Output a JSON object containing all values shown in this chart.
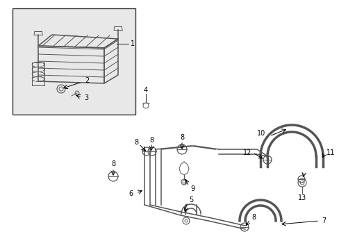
{
  "bg_color": "#ffffff",
  "line_color": "#555555",
  "box_bg": "#e8e8e8",
  "lw_thin": 0.7,
  "lw_med": 1.1,
  "lw_thick": 2.0,
  "lw_hose": 2.5,
  "font_size": 7
}
